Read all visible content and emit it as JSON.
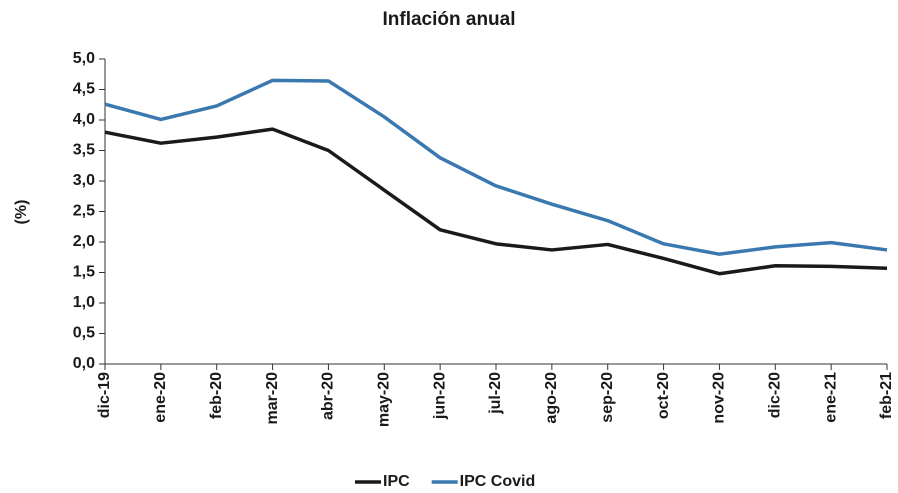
{
  "chart_data": {
    "type": "line",
    "title": "Inflación anual",
    "y_label": "(%)",
    "categories": [
      "dic-19",
      "ene-20",
      "feb-20",
      "mar-20",
      "abr-20",
      "may-20",
      "jun-20",
      "jul-20",
      "ago-20",
      "sep-20",
      "oct-20",
      "nov-20",
      "dic-20",
      "ene-21",
      "feb-21"
    ],
    "series": [
      {
        "name": "IPC",
        "color": "#1a1a1a",
        "values": [
          3.8,
          3.62,
          3.72,
          3.85,
          3.5,
          2.85,
          2.2,
          1.97,
          1.87,
          1.96,
          1.73,
          1.48,
          1.61,
          1.6,
          1.57
        ]
      },
      {
        "name": "IPC Covid",
        "color": "#3a78b0",
        "values": [
          4.26,
          4.01,
          4.23,
          4.65,
          4.64,
          4.05,
          3.38,
          2.92,
          2.62,
          2.35,
          1.97,
          1.8,
          1.92,
          1.99,
          1.87
        ]
      }
    ],
    "ylim": [
      0,
      5
    ],
    "yticks": [
      {
        "value": 0,
        "label": "0,0"
      },
      {
        "value": 0.5,
        "label": "0,5"
      },
      {
        "value": 1,
        "label": "1,0"
      },
      {
        "value": 1.5,
        "label": "1,5"
      },
      {
        "value": 2,
        "label": "2,0"
      },
      {
        "value": 2.5,
        "label": "2,5"
      },
      {
        "value": 3,
        "label": "3,0"
      },
      {
        "value": 3.5,
        "label": "3,5"
      },
      {
        "value": 4,
        "label": "4,0"
      },
      {
        "value": 4.5,
        "label": "4,5"
      },
      {
        "value": 5,
        "label": "5,0"
      }
    ],
    "grid": false,
    "legend": "bottom"
  }
}
